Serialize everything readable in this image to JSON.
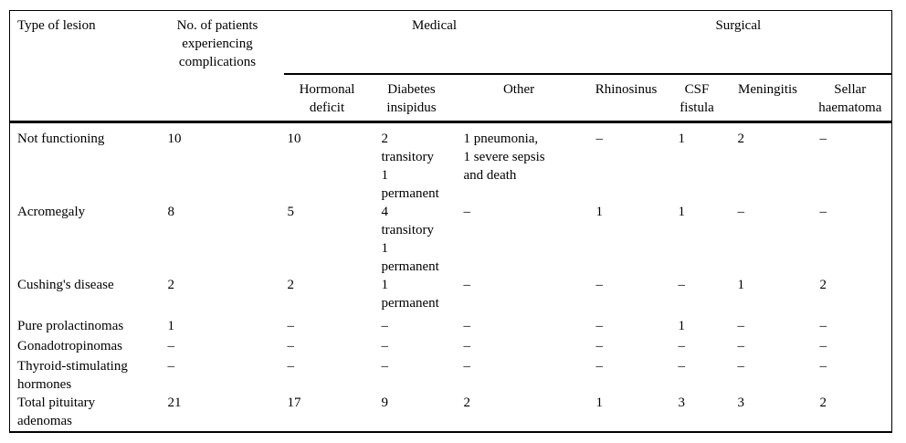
{
  "colors": {
    "background": "#ffffff",
    "text": "#000000",
    "rule": "#000000"
  },
  "table": {
    "header": {
      "type_of_lesion": "Type of lesion",
      "patients": "No. of patients\nexperiencing\ncomplications",
      "medical": "Medical",
      "surgical": "Surgical",
      "sub": [
        "Hormonal\ndeficit",
        "Diabetes\ninsipidus",
        "Other",
        "Rhinosinus",
        "CSF\nfistula",
        "Meningitis",
        "Sellar\nhaematoma"
      ]
    },
    "rows": [
      {
        "label": "Not functioning",
        "cells": [
          "10",
          "10",
          "2\ntransitory\n1\npermanent",
          "1 pneumonia,\n1 severe sepsis\nand death",
          "–",
          "1",
          "2",
          "–"
        ]
      },
      {
        "label": "Acromegaly",
        "cells": [
          "8",
          "5",
          "4\ntransitory\n1\npermanent",
          "–",
          "1",
          "1",
          "–",
          "–"
        ]
      },
      {
        "label": "Cushing's disease",
        "cells": [
          "2",
          "2",
          "1\npermanent",
          "–",
          "–",
          "–",
          "1",
          "2"
        ]
      },
      {
        "label": "Pure prolactinomas",
        "cells": [
          "1",
          "–",
          "–",
          "–",
          "–",
          "1",
          "–",
          "–"
        ]
      },
      {
        "label": "Gonadotropinomas",
        "cells": [
          "–",
          "–",
          "–",
          "–",
          "–",
          "–",
          "–",
          "–"
        ]
      },
      {
        "label": "Thyroid-stimulating\nhormones",
        "cells": [
          "–",
          "–",
          "–",
          "–",
          "–",
          "–",
          "–",
          "–"
        ]
      },
      {
        "label": "Total pituitary\nadenomas",
        "cells": [
          "21",
          "17",
          "9",
          "2",
          "1",
          "3",
          "3",
          "2"
        ]
      }
    ]
  }
}
